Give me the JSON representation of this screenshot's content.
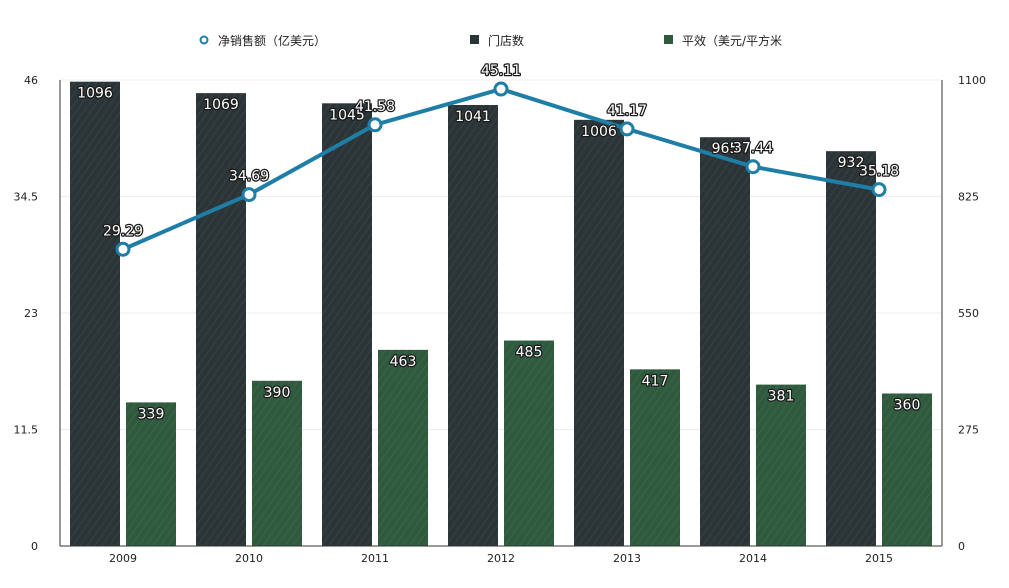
{
  "chart_data": {
    "type": "bar",
    "categories": [
      "2009",
      "2010",
      "2011",
      "2012",
      "2013",
      "2014",
      "2015"
    ],
    "series": [
      {
        "name": "门店数",
        "kind": "bar",
        "axis": "right",
        "color": "#2b3538",
        "values": [
          1096,
          1069,
          1045,
          1041,
          1006,
          965,
          932
        ],
        "labels": [
          "1096",
          "1069",
          "1045",
          "1041",
          "1006",
          "965",
          "932"
        ]
      },
      {
        "name": "平效（美元/平方米",
        "kind": "bar",
        "axis": "right",
        "color": "#2f5a3e",
        "values": [
          339,
          390,
          463,
          485,
          417,
          381,
          360
        ],
        "labels": [
          "339",
          "390",
          "463",
          "485",
          "417",
          "381",
          "360"
        ]
      },
      {
        "name": "净销售额（亿美元）",
        "kind": "line",
        "axis": "left",
        "color": "#1f7ea6",
        "values": [
          29.29,
          34.69,
          41.58,
          45.11,
          41.17,
          37.44,
          35.18
        ],
        "labels": [
          "29.29",
          "34.69",
          "41.58",
          "45.11",
          "41.17",
          "37.44",
          "35.18"
        ]
      }
    ],
    "y_left": {
      "range": [
        0,
        46
      ],
      "ticks": [
        "0",
        "11.5",
        "23",
        "34.5",
        "46"
      ]
    },
    "y_right": {
      "range": [
        0,
        1100
      ],
      "ticks": [
        "0",
        "275",
        "550",
        "825",
        "1100"
      ]
    },
    "legend_position": "top",
    "grid": true
  }
}
